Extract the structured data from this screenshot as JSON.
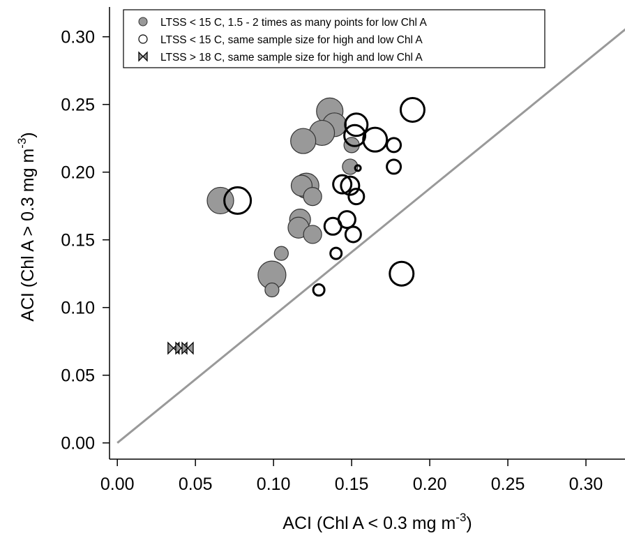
{
  "chart_data": {
    "type": "scatter",
    "xlabel": "ACI (Chl A < 0.3 mg m",
    "xlabel_sup": "-3",
    "xlabel_end": ")",
    "ylabel": "ACI (Chl A > 0.3 mg m",
    "ylabel_sup": "-3",
    "ylabel_end": ")",
    "xlim": [
      -0.005,
      0.325
    ],
    "ylim": [
      -0.012,
      0.322
    ],
    "xticks": [
      0.0,
      0.05,
      0.1,
      0.15,
      0.2,
      0.25,
      0.3
    ],
    "yticks": [
      0.0,
      0.05,
      0.1,
      0.15,
      0.2,
      0.25,
      0.3
    ],
    "xtick_labels": [
      "0.00",
      "0.05",
      "0.10",
      "0.15",
      "0.20",
      "0.25",
      "0.30"
    ],
    "ytick_labels": [
      "0.00",
      "0.05",
      "0.10",
      "0.15",
      "0.20",
      "0.25",
      "0.30"
    ],
    "grid": false,
    "reference_line": {
      "from": [
        0,
        0
      ],
      "to": [
        0.33,
        0.31
      ],
      "color": "#999999"
    },
    "legend_position": "top",
    "series": [
      {
        "name": "LTSS < 15 C, 1.5 - 2 times as many points for low Chl A",
        "marker": "filled-circle",
        "color": "#999999",
        "points": [
          {
            "x": 0.136,
            "y": 0.245,
            "s": 19
          },
          {
            "x": 0.139,
            "y": 0.235,
            "s": 17
          },
          {
            "x": 0.131,
            "y": 0.229,
            "s": 18
          },
          {
            "x": 0.119,
            "y": 0.223,
            "s": 18
          },
          {
            "x": 0.15,
            "y": 0.22,
            "s": 11
          },
          {
            "x": 0.149,
            "y": 0.204,
            "s": 11
          },
          {
            "x": 0.066,
            "y": 0.179,
            "s": 19
          },
          {
            "x": 0.121,
            "y": 0.19,
            "s": 18
          },
          {
            "x": 0.118,
            "y": 0.19,
            "s": 15
          },
          {
            "x": 0.125,
            "y": 0.182,
            "s": 13
          },
          {
            "x": 0.117,
            "y": 0.165,
            "s": 15
          },
          {
            "x": 0.116,
            "y": 0.159,
            "s": 15
          },
          {
            "x": 0.125,
            "y": 0.154,
            "s": 13
          },
          {
            "x": 0.105,
            "y": 0.14,
            "s": 10
          },
          {
            "x": 0.099,
            "y": 0.124,
            "s": 20
          },
          {
            "x": 0.099,
            "y": 0.113,
            "s": 10
          }
        ]
      },
      {
        "name": "LTSS < 15 C, same sample size for high and low Chl A",
        "marker": "open-circle",
        "color": "#000000",
        "points": [
          {
            "x": 0.189,
            "y": 0.246,
            "s": 17
          },
          {
            "x": 0.153,
            "y": 0.235,
            "s": 16
          },
          {
            "x": 0.152,
            "y": 0.227,
            "s": 15
          },
          {
            "x": 0.165,
            "y": 0.224,
            "s": 17
          },
          {
            "x": 0.177,
            "y": 0.22,
            "s": 10
          },
          {
            "x": 0.177,
            "y": 0.204,
            "s": 10
          },
          {
            "x": 0.154,
            "y": 0.203,
            "s": 4
          },
          {
            "x": 0.077,
            "y": 0.179,
            "s": 19
          },
          {
            "x": 0.144,
            "y": 0.191,
            "s": 13
          },
          {
            "x": 0.149,
            "y": 0.19,
            "s": 13
          },
          {
            "x": 0.153,
            "y": 0.182,
            "s": 11
          },
          {
            "x": 0.147,
            "y": 0.165,
            "s": 12
          },
          {
            "x": 0.138,
            "y": 0.16,
            "s": 12
          },
          {
            "x": 0.151,
            "y": 0.154,
            "s": 11
          },
          {
            "x": 0.14,
            "y": 0.14,
            "s": 8
          },
          {
            "x": 0.182,
            "y": 0.125,
            "s": 17
          },
          {
            "x": 0.129,
            "y": 0.113,
            "s": 8
          }
        ]
      },
      {
        "name": "LTSS > 18 C, same sample size for high and low Chl A",
        "marker": "bowtie",
        "color": "#999999",
        "points": [
          {
            "x": 0.036,
            "y": 0.07,
            "s": 8
          },
          {
            "x": 0.041,
            "y": 0.07,
            "s": 8
          },
          {
            "x": 0.045,
            "y": 0.07,
            "s": 8
          }
        ]
      }
    ]
  }
}
